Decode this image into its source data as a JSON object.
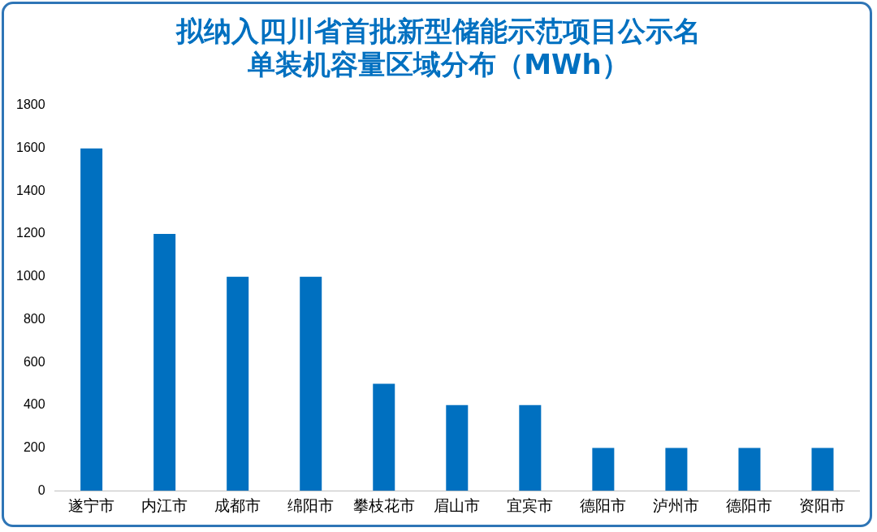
{
  "chart_data": {
    "type": "bar",
    "title": "拟纳入四川省首批新型储能示范项目公示名单装机容量区域分布（MWh）",
    "categories": [
      "遂宁市",
      "内江市",
      "成都市",
      "绵阳市",
      "攀枝花市",
      "眉山市",
      "宜宾市",
      "德阳市",
      "泸州市",
      "德阳市",
      "资阳市"
    ],
    "values": [
      1600,
      1200,
      1000,
      1000,
      500,
      400,
      400,
      200,
      200,
      200,
      200
    ],
    "color": "#0070c0",
    "ylim": [
      0,
      1800
    ],
    "yticks": [
      0,
      200,
      400,
      600,
      800,
      1000,
      1200,
      1400,
      1600,
      1800
    ],
    "grid": false,
    "legend": false
  }
}
